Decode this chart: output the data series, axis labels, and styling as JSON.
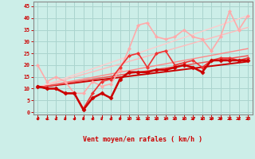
{
  "xlabel": "Vent moyen/en rafales ( km/h )",
  "bg_color": "#cceee8",
  "grid_color": "#aad4ce",
  "x_ticks": [
    0,
    1,
    2,
    3,
    4,
    5,
    6,
    7,
    8,
    9,
    10,
    11,
    12,
    13,
    14,
    15,
    16,
    17,
    18,
    19,
    20,
    21,
    22,
    23
  ],
  "y_ticks": [
    0,
    5,
    10,
    15,
    20,
    25,
    30,
    35,
    40,
    45
  ],
  "xlim": [
    -0.5,
    23.5
  ],
  "ylim": [
    -1,
    47
  ],
  "lines": [
    {
      "x": [
        0,
        1,
        2,
        3,
        4,
        5,
        6,
        7,
        8,
        9,
        10,
        11,
        12,
        13,
        14,
        15,
        16,
        17,
        18,
        19,
        20,
        21,
        22,
        23
      ],
      "y": [
        11,
        10,
        10,
        8,
        8,
        1,
        6,
        8,
        6,
        14,
        17,
        17,
        17,
        18,
        18,
        19,
        20,
        19,
        17,
        22,
        22,
        22,
        22,
        22
      ],
      "color": "#cc0000",
      "lw": 1.8,
      "marker": "D",
      "ms": 2.5,
      "zorder": 6
    },
    {
      "x": [
        0,
        1,
        2,
        3,
        4,
        5,
        6,
        7,
        8,
        9,
        10,
        11,
        12,
        13,
        14,
        15,
        16,
        17,
        18,
        19,
        20,
        21,
        22,
        23
      ],
      "y": [
        11,
        10,
        10,
        8,
        8,
        1.5,
        8,
        13,
        14,
        19,
        24,
        25,
        19,
        25,
        26,
        20,
        21,
        22,
        19,
        22,
        23,
        23,
        22,
        23
      ],
      "color": "#ee3333",
      "lw": 1.2,
      "marker": "D",
      "ms": 2.0,
      "zorder": 5
    },
    {
      "x": [
        0,
        1,
        2,
        3,
        4,
        5,
        6,
        7,
        8,
        9,
        10,
        11,
        12,
        13,
        14,
        15,
        16,
        17,
        18,
        19,
        20,
        21,
        22,
        23
      ],
      "y": [
        20,
        13,
        15,
        13,
        8,
        8,
        13,
        11,
        12,
        18,
        27,
        37,
        38,
        32,
        31,
        32,
        35,
        32,
        31,
        26,
        32,
        43,
        35,
        41
      ],
      "color": "#ffaaaa",
      "lw": 1.2,
      "marker": "D",
      "ms": 2.0,
      "zorder": 4
    },
    {
      "x": [
        0,
        23
      ],
      "y": [
        10.5,
        21.5
      ],
      "color": "#cc0000",
      "lw": 1.4,
      "marker": null,
      "zorder": 3
    },
    {
      "x": [
        0,
        23
      ],
      "y": [
        10.5,
        24
      ],
      "color": "#ee5555",
      "lw": 1.1,
      "marker": null,
      "zorder": 3
    },
    {
      "x": [
        0,
        23
      ],
      "y": [
        10.5,
        27
      ],
      "color": "#ff8888",
      "lw": 1.0,
      "marker": null,
      "zorder": 2
    },
    {
      "x": [
        0,
        23
      ],
      "y": [
        10.5,
        36
      ],
      "color": "#ffbbbb",
      "lw": 1.0,
      "marker": null,
      "zorder": 2
    },
    {
      "x": [
        0,
        23
      ],
      "y": [
        10.5,
        41
      ],
      "color": "#ffcccc",
      "lw": 1.0,
      "marker": null,
      "zorder": 2
    }
  ],
  "xlabel_color": "#cc0000",
  "tick_color": "#cc0000",
  "axis_color": "#cc0000",
  "spine_color": "#888888"
}
